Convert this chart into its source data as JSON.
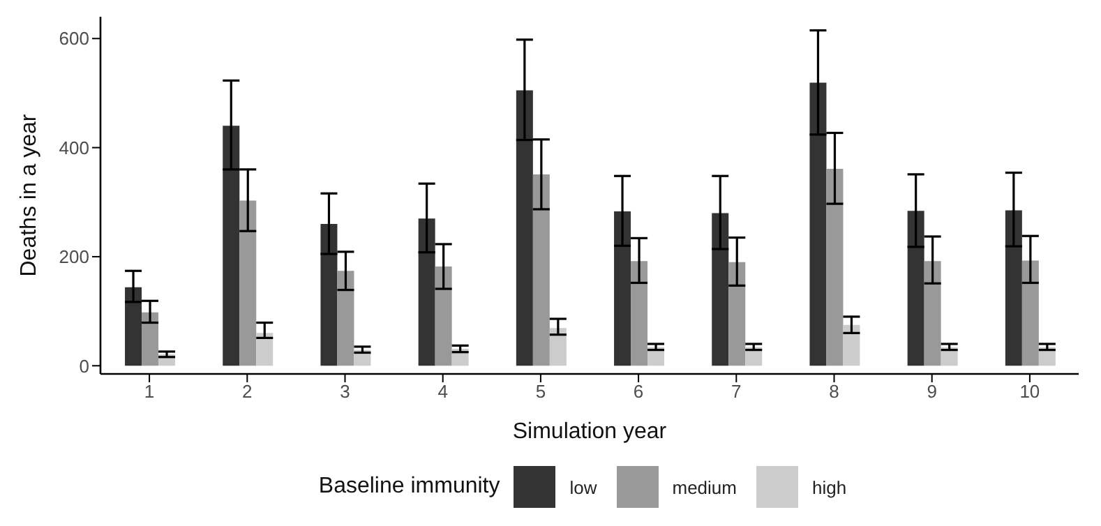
{
  "chart_data": {
    "type": "bar",
    "xlabel": "Simulation year",
    "ylabel": "Deaths in a year",
    "legend_title": "Baseline immunity",
    "legend": "bottom",
    "categories": [
      "1",
      "2",
      "3",
      "4",
      "5",
      "6",
      "7",
      "8",
      "9",
      "10"
    ],
    "ylim": [
      -15,
      640
    ],
    "yticks": [
      0,
      200,
      400,
      600
    ],
    "series": [
      {
        "name": "low",
        "color": "#333333",
        "values": [
          144,
          440,
          260,
          270,
          505,
          283,
          280,
          519,
          284,
          285
        ],
        "errors": [
          [
            117,
            174
          ],
          [
            360,
            523
          ],
          [
            205,
            316
          ],
          [
            208,
            334
          ],
          [
            414,
            598
          ],
          [
            220,
            348
          ],
          [
            214,
            348
          ],
          [
            424,
            615
          ],
          [
            218,
            351
          ],
          [
            219,
            354
          ]
        ]
      },
      {
        "name": "medium",
        "color": "#999999",
        "values": [
          98,
          303,
          174,
          182,
          351,
          192,
          190,
          361,
          192,
          193
        ],
        "errors": [
          [
            79,
            119
          ],
          [
            247,
            360
          ],
          [
            139,
            209
          ],
          [
            141,
            223
          ],
          [
            287,
            415
          ],
          [
            152,
            234
          ],
          [
            147,
            235
          ],
          [
            297,
            427
          ],
          [
            151,
            237
          ],
          [
            152,
            238
          ]
        ]
      },
      {
        "name": "high",
        "color": "#cccccc",
        "values": [
          21,
          60,
          29,
          31,
          69,
          34,
          34,
          75,
          34,
          34
        ],
        "errors": [
          [
            16,
            26
          ],
          [
            51,
            79
          ],
          [
            24,
            35
          ],
          [
            25,
            37
          ],
          [
            57,
            86
          ],
          [
            29,
            40
          ],
          [
            29,
            40
          ],
          [
            60,
            90
          ],
          [
            29,
            40
          ],
          [
            29,
            40
          ]
        ]
      }
    ]
  }
}
